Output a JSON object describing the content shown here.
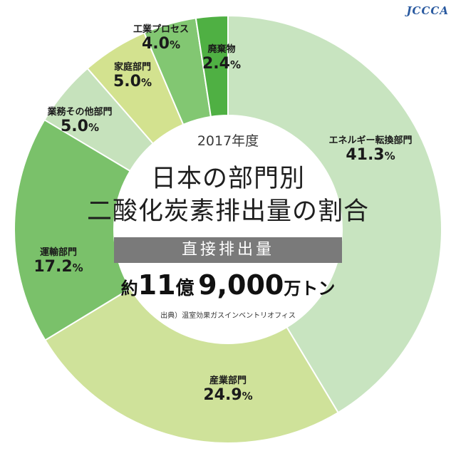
{
  "logo_text": "JCCCA",
  "center": {
    "year": "2017年度",
    "title_line1": "日本の部門別",
    "title_line2": "二酸化炭素排出量の割合",
    "band": "直接排出量",
    "total_prefix": "約",
    "total_value1": "11",
    "total_mid": "億",
    "total_value2": "9,000",
    "total_unit": "万トン",
    "source": "出典）温室効果ガスインベントリオフィス"
  },
  "chart_data": {
    "type": "pie",
    "title": "日本の部門別二酸化炭素排出量の割合",
    "subtitle": "直接排出量",
    "categories": [
      "エネルギー転換部門",
      "産業部門",
      "運輸部門",
      "業務その他部門",
      "家庭部門",
      "工業プロセス",
      "廃棄物"
    ],
    "values": [
      41.3,
      24.9,
      17.2,
      5.0,
      5.0,
      4.0,
      2.4
    ],
    "labels_pct": [
      "41.3",
      "24.9",
      "17.2",
      "5.0",
      "5.0",
      "4.0",
      "2.4"
    ],
    "pct_symbol": "%",
    "colors": [
      "#c8e4c0",
      "#cfe29a",
      "#7ac16a",
      "#c6e2bc",
      "#d3e28f",
      "#82c772",
      "#4fb043"
    ]
  }
}
